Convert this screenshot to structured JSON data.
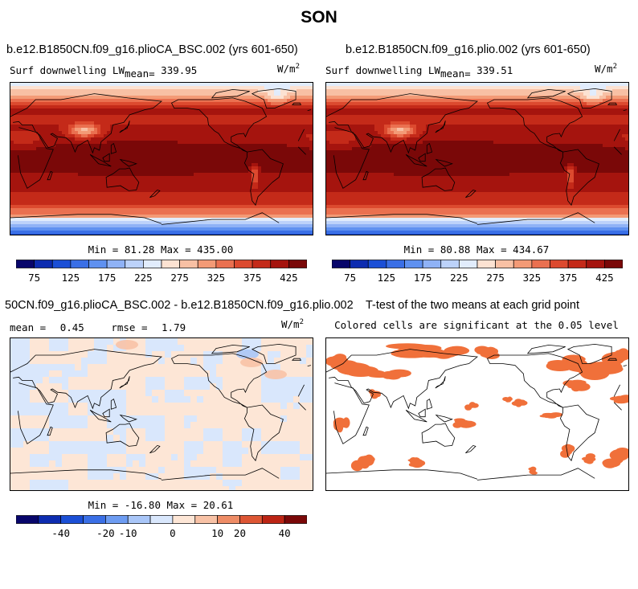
{
  "page_title": "SON",
  "panels": {
    "p1": {
      "title": "b.e12.B1850CN.f09_g16.plioCA_BSC.002 (yrs 601-650)",
      "var_label": "Surf downwelling LW",
      "mean_label": "mean=",
      "mean_value": "339.95",
      "units": "W/m",
      "units_exp": "2",
      "min_label": "Min =",
      "min_value": "81.28",
      "max_label": "Max =",
      "max_value": "435.00"
    },
    "p2": {
      "title": "b.e12.B1850CN.f09_g16.plio.002 (yrs 601-650)",
      "var_label": "Surf downwelling LW",
      "mean_label": "mean=",
      "mean_value": "339.51",
      "units": "W/m",
      "units_exp": "2",
      "min_label": "Min =",
      "min_value": "80.88",
      "max_label": "Max =",
      "max_value": "434.67"
    },
    "p3": {
      "title": "50CN.f09_g16.plioCA_BSC.002 - b.e12.B1850CN.f09_g16.plio.002",
      "mean_label": "mean =",
      "mean_value": "0.45",
      "rmse_label": "rmse =",
      "rmse_value": "1.79",
      "units": "W/m",
      "units_exp": "2",
      "min_label": "Min =",
      "min_value": "-16.80",
      "max_label": "Max =",
      "max_value": "20.61"
    },
    "p4": {
      "title": "T-test of the two means at each grid point",
      "subtitle": "Colored cells are significant at the 0.05 level"
    }
  },
  "chart_data": [
    {
      "type": "heatmap",
      "name": "Surf downwelling LW (plioCA_BSC)",
      "season": "SON",
      "mean": 339.95,
      "min": 81.28,
      "max": 435.0,
      "colorbar_levels": [
        75,
        100,
        125,
        150,
        175,
        200,
        225,
        250,
        275,
        300,
        325,
        350,
        375,
        400,
        425
      ],
      "colorbar_ticks": [
        "75",
        "125",
        "175",
        "225",
        "275",
        "325",
        "375",
        "425"
      ]
    },
    {
      "type": "heatmap",
      "name": "Surf downwelling LW (plio)",
      "season": "SON",
      "mean": 339.51,
      "min": 80.88,
      "max": 434.67,
      "colorbar_levels": [
        75,
        100,
        125,
        150,
        175,
        200,
        225,
        250,
        275,
        300,
        325,
        350,
        375,
        400,
        425
      ],
      "colorbar_ticks": [
        "75",
        "125",
        "175",
        "225",
        "275",
        "325",
        "375",
        "425"
      ]
    },
    {
      "type": "heatmap",
      "name": "Difference",
      "mean": 0.45,
      "rmse": 1.79,
      "min": -16.8,
      "max": 20.61,
      "colorbar_levels": [
        -50,
        -40,
        -30,
        -20,
        -10,
        -5,
        0,
        5,
        10,
        20,
        30,
        40,
        50
      ],
      "colorbar_ticks": [
        "-40",
        "-20",
        "-10",
        "0",
        "10",
        "20",
        "40"
      ]
    },
    {
      "type": "heatmap",
      "name": "T-test significance",
      "significance_level": 0.05
    }
  ],
  "colors": {
    "scale": [
      "#08066b",
      "#0d2cb0",
      "#1b4fd6",
      "#3a6fe6",
      "#5f91f0",
      "#8fb2f6",
      "#bcd2fa",
      "#e1ecfc",
      "#fce2d2",
      "#f8c0a4",
      "#f39a76",
      "#ea7050",
      "#dc4a2f",
      "#c42a19",
      "#a5140e",
      "#7a0808"
    ],
    "diff_scale": [
      "#08066b",
      "#0d2cb0",
      "#1b4fd6",
      "#3a6fe6",
      "#6d9cf2",
      "#a9c6f8",
      "#d9e7fc",
      "#fde6d6",
      "#f8c2a6",
      "#ee8c66",
      "#dd5634",
      "#bc2414",
      "#7a0808"
    ],
    "significant": "#f0703a"
  }
}
